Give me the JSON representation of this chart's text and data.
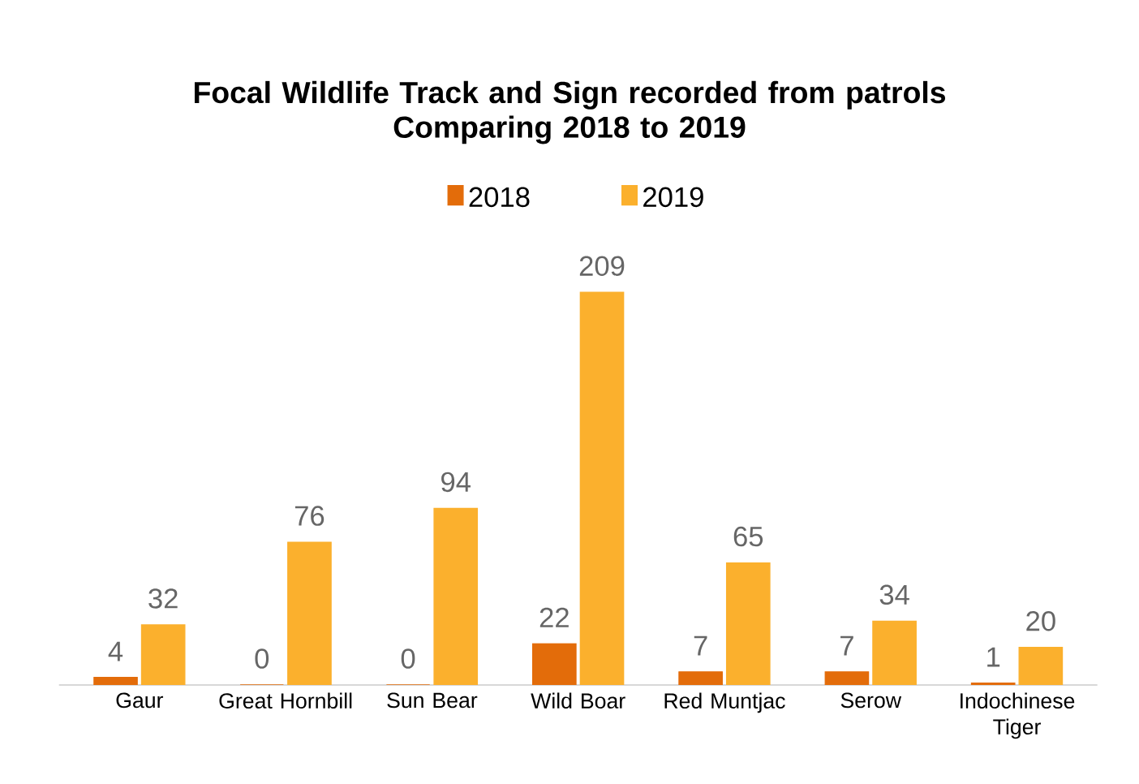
{
  "chart_data": {
    "type": "bar",
    "title": "Focal Wildlife Track and Sign recorded from patrols",
    "subtitle": "Comparing 2018 to 2019",
    "categories": [
      "Gaur",
      "Great Hornbill",
      "Sun Bear",
      "Wild Boar",
      "Red Muntjac",
      "Serow",
      "Indochinese Tiger"
    ],
    "series": [
      {
        "name": "2018",
        "color": "#e36c0a",
        "values": [
          4,
          0,
          0,
          22,
          7,
          7,
          1
        ]
      },
      {
        "name": "2019",
        "color": "#fbb02d",
        "values": [
          32,
          76,
          94,
          209,
          65,
          34,
          20
        ]
      }
    ],
    "data_labels": true,
    "legend": "top"
  }
}
